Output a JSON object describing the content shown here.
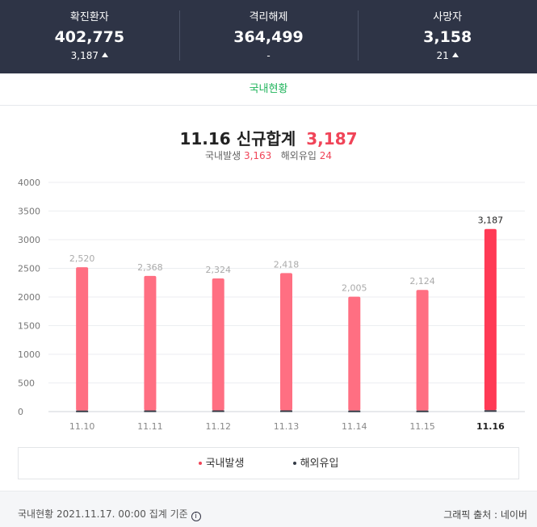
{
  "stats": [
    {
      "label": "확진환자",
      "value": "402,775",
      "delta": "3,187",
      "up": true
    },
    {
      "label": "격리해제",
      "value": "364,499",
      "delta": "-",
      "up": false
    },
    {
      "label": "사망자",
      "value": "3,158",
      "delta": "21",
      "up": true
    }
  ],
  "tab": {
    "label": "국내현황"
  },
  "headline": {
    "date": "11.16",
    "label": "신규합계",
    "total": "3,187"
  },
  "subline": {
    "domestic_label": "국내발생",
    "domestic_value": "3,163",
    "overseas_label": "해외유입",
    "overseas_value": "24"
  },
  "colors": {
    "accent": "#f04458",
    "bar": "#ff6f82",
    "bar_highlight": "#ff3a55",
    "overseas": "#333a45",
    "header_bg": "#2e3446",
    "tab_green": "#1eb35a"
  },
  "chart_data": {
    "type": "bar",
    "stacked": true,
    "categories": [
      "11.10",
      "11.11",
      "11.12",
      "11.13",
      "11.14",
      "11.15",
      "11.16"
    ],
    "series": [
      {
        "name": "국내발생",
        "values": [
          2502,
          2348,
          2303,
          2397,
          1987,
          2106,
          3163
        ]
      },
      {
        "name": "해외유입",
        "values": [
          18,
          20,
          21,
          21,
          18,
          18,
          24
        ]
      }
    ],
    "totals": [
      2520,
      2368,
      2324,
      2418,
      2005,
      2124,
      3187
    ],
    "total_labels": [
      "2,520",
      "2,368",
      "2,324",
      "2,418",
      "2,005",
      "2,124",
      "3,187"
    ],
    "highlight_index": 6,
    "yticks": [
      0,
      500,
      1000,
      1500,
      2000,
      2500,
      3000,
      3500,
      4000
    ],
    "ylim": [
      0,
      4000
    ],
    "grid": true,
    "legend_position": "bottom"
  },
  "legend": [
    {
      "label": "국내발생",
      "color": "#f04458"
    },
    {
      "label": "해외유입",
      "color": "#333a45"
    }
  ],
  "footer": {
    "basis": "국내현황 2021.11.17. 00:00 집계 기준",
    "info_glyph": "i",
    "source": "그래픽 출처 : 네이버"
  }
}
